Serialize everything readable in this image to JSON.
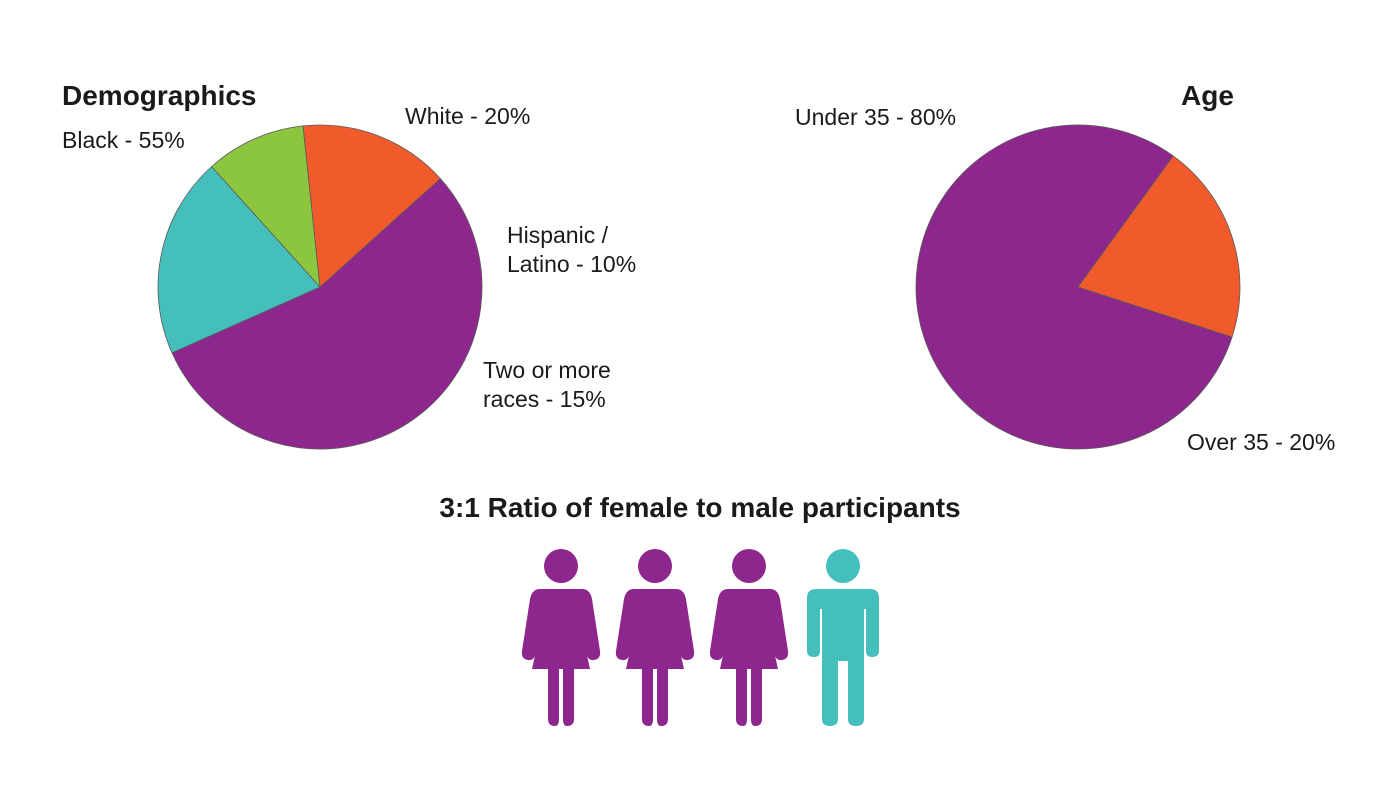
{
  "colors": {
    "purple": "#8e278d",
    "teal": "#45bfbb",
    "green": "#8cc63f",
    "orange": "#f15a2b",
    "text": "#1a1a1a",
    "background": "#ffffff"
  },
  "chart_data": [
    {
      "type": "pie",
      "title": "Demographics",
      "slices": [
        {
          "label": "Black - 55%",
          "value": 55,
          "color": "#8e278d"
        },
        {
          "label": "White  - 20%",
          "value": 20,
          "color": "#45bfbb"
        },
        {
          "label": "Hispanic / Latino -  10%",
          "label_lines": [
            "Hispanic /",
            "Latino -  10%"
          ],
          "value": 10,
          "color": "#8cc63f"
        },
        {
          "label": "Two or more races - 15%",
          "label_lines": [
            "Two or more",
            "races - 15%"
          ],
          "value": 15,
          "color": "#f15a2b"
        }
      ]
    },
    {
      "type": "pie",
      "title": "Age",
      "slices": [
        {
          "label": "Under 35 - 80%",
          "value": 80,
          "color": "#8e278d"
        },
        {
          "label": "Over 35 - 20%",
          "value": 20,
          "color": "#f15a2b"
        }
      ]
    }
  ],
  "ratio": {
    "title": "3:1 Ratio of female to male participants",
    "icons": [
      {
        "icon": "female-person-icon",
        "color": "#8e278d"
      },
      {
        "icon": "female-person-icon",
        "color": "#8e278d"
      },
      {
        "icon": "female-person-icon",
        "color": "#8e278d"
      },
      {
        "icon": "male-person-icon",
        "color": "#45bfbb"
      }
    ]
  }
}
